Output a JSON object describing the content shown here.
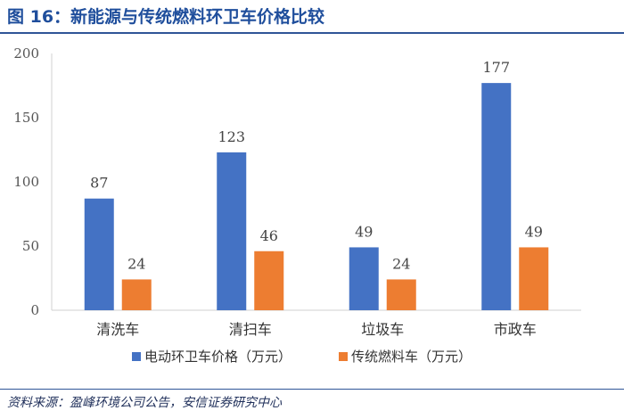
{
  "header": {
    "title": "图 16：新能源与传统燃料环卫车价格比较"
  },
  "footer": {
    "source": "资料来源：盈峰环境公司公告，安信证券研究中心"
  },
  "colors": {
    "title": "#1f4e9c",
    "rule": "#2f5597",
    "series_1": "#4472c4",
    "series_2": "#ed7d31"
  },
  "chart_data": {
    "type": "bar",
    "title": "",
    "xlabel": "",
    "ylabel": "",
    "categories": [
      "清洗车",
      "清扫车",
      "垃圾车",
      "市政车"
    ],
    "series": [
      {
        "name": "电动环卫车价格（万元）",
        "values": [
          87,
          123,
          49,
          177
        ]
      },
      {
        "name": "传统燃料车（万元）",
        "values": [
          24,
          46,
          24,
          49
        ]
      }
    ],
    "yticks": [
      0,
      50,
      100,
      150,
      200
    ],
    "ylim": [
      0,
      200
    ],
    "grid": false,
    "legend": "bottom",
    "data_labels": true
  }
}
